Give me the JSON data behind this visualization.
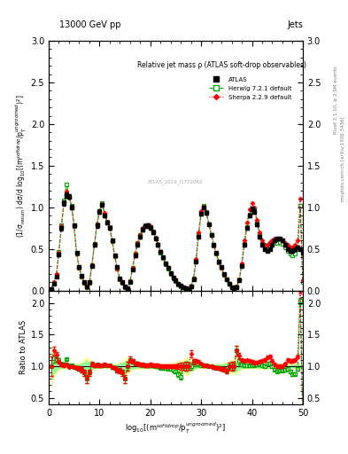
{
  "title_left": "13000 GeV pp",
  "title_right": "Jets",
  "plot_title": "Relative jet mass ρ (ATLAS soft-drop observables)",
  "ylabel_main": "(1/σ$_{resum}$) dσ/d log$_{10}$[(m$^{soft drop}$/p$_T^{ungroomed}$)$^2$]",
  "ylabel_ratio": "Ratio to ATLAS",
  "xlabel": "log$_{10}$[(m$^{soft drop}$/p$_T^{ungroomed}$)$^2$]",
  "right_label1": "Rivet 3.1.10, ≥ 2.9M events",
  "right_label2": "mcplots.cern.ch [arXiv:1306.3436]",
  "watermark": "ATLAS_2019_I1772062",
  "atlas_x": [
    0.5,
    1.0,
    1.5,
    2.0,
    2.5,
    3.0,
    3.5,
    4.0,
    4.5,
    5.0,
    5.5,
    6.0,
    6.5,
    7.0,
    7.5,
    8.0,
    8.5,
    9.0,
    9.5,
    10.0,
    10.5,
    11.0,
    11.5,
    12.0,
    12.5,
    13.0,
    13.5,
    14.0,
    14.5,
    15.0,
    15.5,
    16.0,
    16.5,
    17.0,
    17.5,
    18.0,
    18.5,
    19.0,
    19.5,
    20.0,
    20.5,
    21.0,
    21.5,
    22.0,
    22.5,
    23.0,
    23.5,
    24.0,
    24.5,
    25.0,
    25.5,
    26.0,
    26.5,
    27.0,
    27.5,
    28.0,
    28.5,
    29.0,
    29.5,
    30.0,
    30.5,
    31.0,
    31.5,
    32.0,
    32.5,
    33.0,
    33.5,
    34.0,
    34.5,
    35.0,
    35.5,
    36.0,
    36.5,
    37.0,
    37.5,
    38.0,
    38.5,
    39.0,
    39.5,
    40.0,
    40.5,
    41.0,
    41.5,
    42.0,
    42.5,
    43.0,
    43.5,
    44.0,
    44.5,
    45.0,
    45.5,
    46.0,
    46.5,
    47.0,
    47.5,
    48.0,
    48.5,
    49.0,
    49.5,
    50.0
  ],
  "atlas_y": [
    0.02,
    0.08,
    0.17,
    0.43,
    0.75,
    1.05,
    1.15,
    1.13,
    1.0,
    0.78,
    0.45,
    0.28,
    0.18,
    0.1,
    0.05,
    0.1,
    0.3,
    0.55,
    0.78,
    0.95,
    1.03,
    0.9,
    0.82,
    0.75,
    0.6,
    0.42,
    0.28,
    0.15,
    0.1,
    0.05,
    0.03,
    0.1,
    0.25,
    0.42,
    0.55,
    0.65,
    0.73,
    0.77,
    0.78,
    0.75,
    0.7,
    0.63,
    0.55,
    0.47,
    0.4,
    0.33,
    0.27,
    0.21,
    0.16,
    0.12,
    0.08,
    0.06,
    0.04,
    0.03,
    0.02,
    0.05,
    0.14,
    0.35,
    0.65,
    0.92,
    1.0,
    0.93,
    0.8,
    0.67,
    0.55,
    0.45,
    0.35,
    0.28,
    0.2,
    0.14,
    0.08,
    0.04,
    0.02,
    0.04,
    0.12,
    0.3,
    0.55,
    0.75,
    0.9,
    0.98,
    0.95,
    0.8,
    0.65,
    0.55,
    0.5,
    0.48,
    0.5,
    0.55,
    0.6,
    0.62,
    0.62,
    0.6,
    0.55,
    0.5,
    0.48,
    0.48,
    0.5,
    0.52,
    0.5,
    0.45
  ],
  "atlas_yerr": [
    0.005,
    0.01,
    0.015,
    0.02,
    0.025,
    0.03,
    0.03,
    0.03,
    0.025,
    0.02,
    0.015,
    0.01,
    0.01,
    0.008,
    0.005,
    0.008,
    0.015,
    0.02,
    0.025,
    0.025,
    0.025,
    0.022,
    0.02,
    0.018,
    0.015,
    0.012,
    0.01,
    0.008,
    0.006,
    0.004,
    0.003,
    0.006,
    0.01,
    0.015,
    0.018,
    0.02,
    0.02,
    0.022,
    0.022,
    0.022,
    0.02,
    0.018,
    0.016,
    0.014,
    0.012,
    0.01,
    0.009,
    0.008,
    0.007,
    0.006,
    0.005,
    0.004,
    0.003,
    0.003,
    0.002,
    0.003,
    0.007,
    0.012,
    0.018,
    0.022,
    0.024,
    0.022,
    0.02,
    0.018,
    0.016,
    0.014,
    0.012,
    0.01,
    0.008,
    0.007,
    0.005,
    0.003,
    0.002,
    0.003,
    0.007,
    0.012,
    0.016,
    0.02,
    0.022,
    0.024,
    0.024,
    0.022,
    0.02,
    0.018,
    0.016,
    0.015,
    0.015,
    0.016,
    0.018,
    0.019,
    0.019,
    0.018,
    0.016,
    0.015,
    0.015,
    0.015,
    0.015,
    0.016,
    0.015,
    0.014
  ],
  "herwig_y": [
    0.02,
    0.09,
    0.19,
    0.47,
    0.78,
    1.08,
    1.28,
    1.14,
    1.02,
    0.77,
    0.44,
    0.27,
    0.17,
    0.09,
    0.04,
    0.09,
    0.31,
    0.56,
    0.8,
    0.96,
    1.05,
    0.91,
    0.83,
    0.76,
    0.59,
    0.41,
    0.26,
    0.14,
    0.09,
    0.04,
    0.03,
    0.11,
    0.27,
    0.44,
    0.57,
    0.67,
    0.74,
    0.78,
    0.79,
    0.76,
    0.71,
    0.63,
    0.55,
    0.46,
    0.39,
    0.32,
    0.26,
    0.2,
    0.15,
    0.11,
    0.07,
    0.05,
    0.04,
    0.03,
    0.02,
    0.05,
    0.15,
    0.36,
    0.67,
    0.93,
    1.02,
    0.94,
    0.8,
    0.67,
    0.54,
    0.44,
    0.34,
    0.27,
    0.19,
    0.13,
    0.08,
    0.04,
    0.02,
    0.05,
    0.13,
    0.31,
    0.56,
    0.76,
    0.91,
    0.99,
    0.97,
    0.82,
    0.67,
    0.56,
    0.5,
    0.5,
    0.52,
    0.55,
    0.57,
    0.57,
    0.58,
    0.56,
    0.52,
    0.48,
    0.44,
    0.42,
    0.44,
    0.5,
    1.02,
    0.1
  ],
  "herwig_yerr": [
    0.003,
    0.005,
    0.008,
    0.012,
    0.016,
    0.02,
    0.022,
    0.02,
    0.018,
    0.015,
    0.012,
    0.009,
    0.007,
    0.005,
    0.003,
    0.005,
    0.01,
    0.014,
    0.016,
    0.018,
    0.018,
    0.016,
    0.015,
    0.014,
    0.012,
    0.01,
    0.008,
    0.006,
    0.005,
    0.003,
    0.002,
    0.005,
    0.009,
    0.012,
    0.015,
    0.016,
    0.018,
    0.018,
    0.018,
    0.018,
    0.016,
    0.014,
    0.012,
    0.011,
    0.01,
    0.009,
    0.007,
    0.006,
    0.005,
    0.004,
    0.003,
    0.003,
    0.002,
    0.002,
    0.001,
    0.003,
    0.006,
    0.01,
    0.014,
    0.018,
    0.02,
    0.018,
    0.015,
    0.014,
    0.012,
    0.011,
    0.009,
    0.008,
    0.006,
    0.005,
    0.004,
    0.003,
    0.001,
    0.003,
    0.006,
    0.01,
    0.014,
    0.018,
    0.02,
    0.022,
    0.022,
    0.018,
    0.015,
    0.014,
    0.013,
    0.013,
    0.013,
    0.014,
    0.015,
    0.015,
    0.015,
    0.014,
    0.013,
    0.012,
    0.011,
    0.011,
    0.012,
    0.014,
    0.025,
    0.003
  ],
  "sherpa_y": [
    0.02,
    0.1,
    0.2,
    0.46,
    0.77,
    1.06,
    1.19,
    1.12,
    1.0,
    0.77,
    0.44,
    0.27,
    0.17,
    0.09,
    0.04,
    0.09,
    0.31,
    0.56,
    0.8,
    0.96,
    1.04,
    0.93,
    0.83,
    0.76,
    0.59,
    0.41,
    0.26,
    0.14,
    0.09,
    0.04,
    0.03,
    0.11,
    0.27,
    0.44,
    0.57,
    0.67,
    0.75,
    0.78,
    0.79,
    0.77,
    0.71,
    0.64,
    0.56,
    0.47,
    0.4,
    0.33,
    0.27,
    0.21,
    0.16,
    0.12,
    0.08,
    0.06,
    0.04,
    0.03,
    0.02,
    0.06,
    0.15,
    0.38,
    0.7,
    0.96,
    1.01,
    0.94,
    0.8,
    0.67,
    0.54,
    0.44,
    0.34,
    0.27,
    0.19,
    0.13,
    0.08,
    0.04,
    0.02,
    0.05,
    0.14,
    0.33,
    0.6,
    0.82,
    0.98,
    1.05,
    1.0,
    0.85,
    0.7,
    0.6,
    0.55,
    0.55,
    0.58,
    0.6,
    0.62,
    0.62,
    0.62,
    0.6,
    0.57,
    0.55,
    0.52,
    0.52,
    0.55,
    0.6,
    1.1,
    0.12
  ],
  "sherpa_yerr": [
    0.003,
    0.005,
    0.008,
    0.012,
    0.016,
    0.02,
    0.022,
    0.02,
    0.018,
    0.015,
    0.012,
    0.009,
    0.007,
    0.005,
    0.003,
    0.005,
    0.01,
    0.014,
    0.016,
    0.018,
    0.018,
    0.016,
    0.015,
    0.014,
    0.012,
    0.01,
    0.008,
    0.006,
    0.005,
    0.003,
    0.002,
    0.005,
    0.009,
    0.012,
    0.015,
    0.016,
    0.018,
    0.018,
    0.018,
    0.018,
    0.016,
    0.014,
    0.012,
    0.011,
    0.01,
    0.009,
    0.007,
    0.006,
    0.005,
    0.004,
    0.003,
    0.003,
    0.002,
    0.002,
    0.001,
    0.003,
    0.006,
    0.01,
    0.014,
    0.018,
    0.02,
    0.018,
    0.015,
    0.014,
    0.012,
    0.011,
    0.009,
    0.008,
    0.006,
    0.005,
    0.004,
    0.003,
    0.001,
    0.003,
    0.006,
    0.01,
    0.014,
    0.018,
    0.02,
    0.022,
    0.022,
    0.018,
    0.015,
    0.014,
    0.013,
    0.013,
    0.013,
    0.014,
    0.015,
    0.015,
    0.015,
    0.014,
    0.013,
    0.012,
    0.011,
    0.011,
    0.012,
    0.014,
    0.025,
    0.003
  ],
  "xlim": [
    0,
    50
  ],
  "ylim_main": [
    0,
    3
  ],
  "ylim_ratio": [
    0.4,
    2.2
  ],
  "yticks_main": [
    0,
    0.5,
    1.0,
    1.5,
    2.0,
    2.5,
    3.0
  ],
  "yticks_ratio": [
    0.5,
    1.0,
    1.5,
    2.0
  ],
  "xticks": [
    0,
    10,
    20,
    30,
    40,
    50
  ],
  "herwig_color": "#00aa00",
  "sherpa_color": "#ff0000",
  "atlas_color": "#000000",
  "band_yellow": "#ffff99",
  "band_green": "#99ff99",
  "fig_width": 3.93,
  "fig_height": 5.12
}
